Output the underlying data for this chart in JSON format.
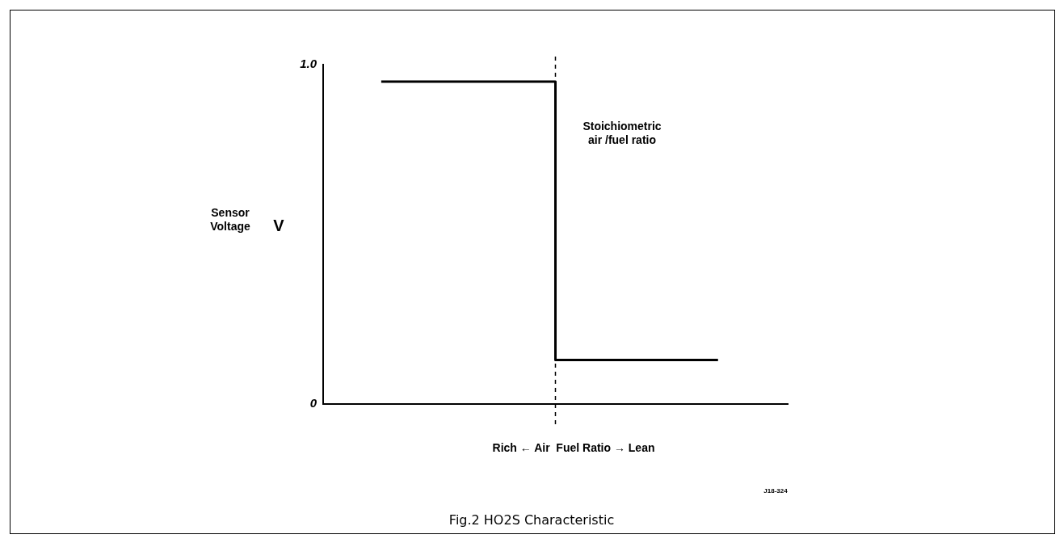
{
  "chart_data": {
    "type": "step",
    "title": "Fig.2 HO2S Characteristic",
    "xlabel": "Rich ← Air  Fuel Ratio → Lean",
    "ylabel": "Sensor Voltage",
    "categories": [
      null,
      null,
      null,
      null,
      null,
      null,
      null,
      null,
      null,
      null,
      null,
      null,
      null,
      null,
      null,
      null,
      null,
      null,
      null,
      null,
      null,
      null,
      null,
      null,
      null,
      null,
      null,
      null,
      null,
      null,
      null,
      null,
      null,
      null,
      null,
      null,
      null,
      null,
      null,
      null,
      null
    ],
    "series": [
      {
        "color": "#000000",
        "values": [
          null,
          null,
          null,
          null,
          null,
          0.95,
          0.95,
          0.95,
          0.95,
          0.95,
          0.95,
          0.95,
          0.95,
          0.95,
          0.95,
          0.95,
          0.95,
          0.95,
          0.95,
          0.95,
          0.13,
          0.13,
          0.13,
          0.13,
          0.13,
          0.13,
          0.13,
          0.13,
          0.13,
          0.13,
          0.13,
          0.13,
          0.13,
          0.13,
          0.13,
          null,
          null,
          null,
          null,
          null,
          null
        ]
      }
    ],
    "ylim": [
      0,
      1
    ],
    "yticks": [
      0,
      {
        "value": 1,
        "label": "1.0"
      }
    ],
    "grid": false,
    "legend": false,
    "tick_labels": "y",
    "annotations": [
      "V",
      "Stoichiometric air /fuel ratio",
      "J18-324"
    ]
  }
}
